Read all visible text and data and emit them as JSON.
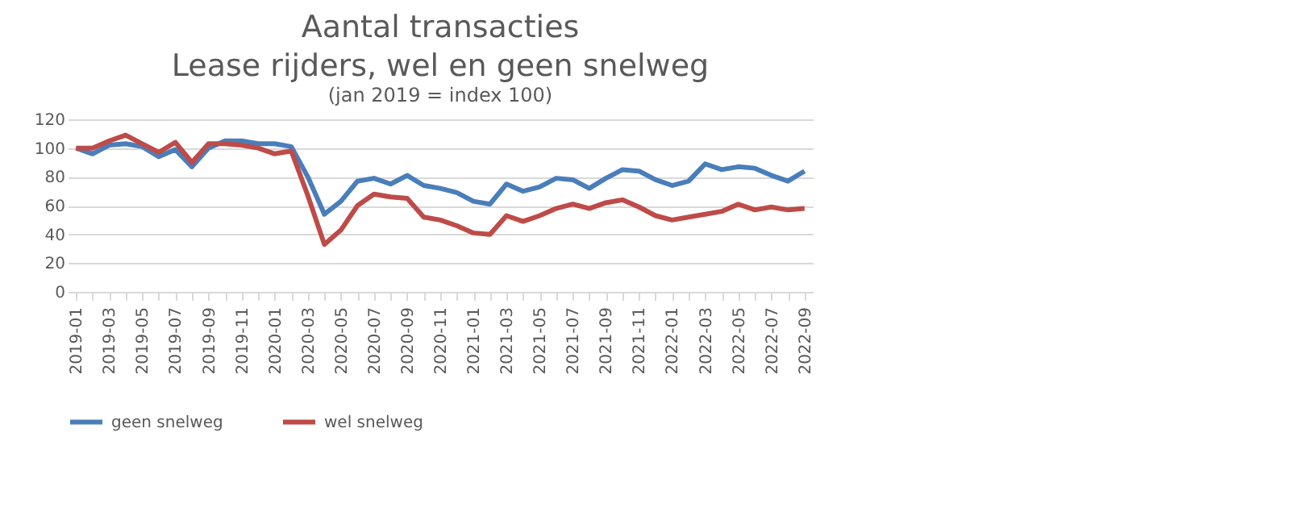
{
  "chart_data": {
    "type": "line",
    "title": "Aantal transacties\nLease rijders, wel en geen snelweg",
    "subtitle": "(jan 2019 = index 100)",
    "categories": [
      "2019-01",
      null,
      "2019-03",
      null,
      "2019-05",
      null,
      "2019-07",
      null,
      "2019-09",
      null,
      "2019-11",
      null,
      "2020-01",
      null,
      "2020-03",
      null,
      "2020-05",
      null,
      "2020-07",
      null,
      "2020-09",
      null,
      "2020-11",
      null,
      "2021-01",
      null,
      "2021-03",
      null,
      "2021-05",
      null,
      "2021-07",
      null,
      "2021-09",
      null,
      "2021-11",
      null,
      "2022-01",
      null,
      "2022-03",
      null,
      "2022-05",
      null,
      "2022-07",
      null,
      "2022-09"
    ],
    "series": [
      {
        "name": "geen snelweg",
        "color": "#4a7ebb",
        "values": [
          100,
          96,
          102,
          103,
          101,
          94,
          99,
          87,
          100,
          105,
          105,
          103,
          103,
          101,
          80,
          54,
          63,
          77,
          79,
          75,
          81,
          74,
          72,
          69,
          63,
          61,
          75,
          70,
          73,
          79,
          78,
          72,
          79,
          85,
          84,
          78,
          74,
          77,
          89,
          85,
          87,
          86,
          81,
          77,
          84
        ]
      },
      {
        "name": "wel snelweg",
        "color": "#be4b48",
        "values": [
          100,
          100,
          105,
          109,
          103,
          97,
          104,
          90,
          103,
          103,
          102,
          100,
          96,
          98,
          67,
          33,
          43,
          60,
          68,
          66,
          65,
          52,
          50,
          46,
          41,
          40,
          53,
          49,
          53,
          58,
          61,
          58,
          62,
          64,
          59,
          53,
          50,
          52,
          54,
          56,
          61,
          57,
          59,
          57,
          58
        ]
      }
    ],
    "ylim": [
      0,
      120
    ],
    "yticks": [
      0,
      20,
      40,
      60,
      80,
      100,
      120
    ],
    "grid": "y",
    "legend": "bottom"
  }
}
